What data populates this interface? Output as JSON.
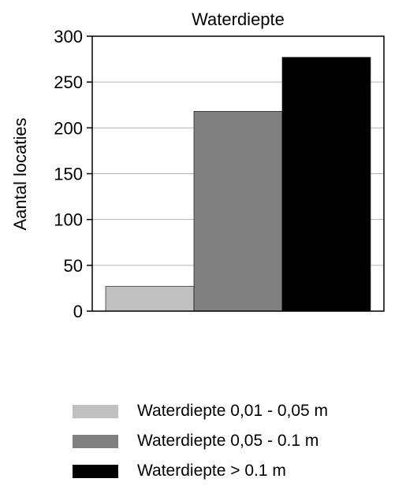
{
  "chart_data": {
    "type": "bar",
    "title": "Waterdiepte",
    "xlabel": "",
    "ylabel": "Aantal locaties",
    "ylim": [
      0,
      300
    ],
    "yticks": [
      0,
      50,
      100,
      150,
      200,
      250,
      300
    ],
    "grid": true,
    "legend_position": "bottom",
    "series": [
      {
        "name": "Waterdiepte 0,01 - 0,05 m",
        "values": [
          27
        ],
        "color": "#c0c0c0"
      },
      {
        "name": "Waterdiepte 0,05 - 0.1 m",
        "values": [
          218
        ],
        "color": "#808080"
      },
      {
        "name": "Waterdiepte > 0.1 m",
        "values": [
          277
        ],
        "color": "#000000"
      }
    ]
  }
}
